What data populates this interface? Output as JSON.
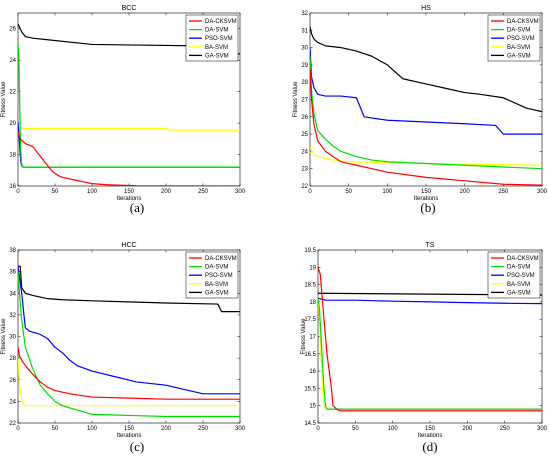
{
  "colors": {
    "DA-CKSVM": "#ff0000",
    "DA-SVM": "#00dd00",
    "PSO-SVM": "#0000ff",
    "BA-SVM": "#ffff00",
    "GA-SVM": "#000000"
  },
  "chart_data": [
    {
      "type": "line",
      "caption": "(a)",
      "title": "BCC",
      "xlabel": "Iterations",
      "ylabel": "Fitness Value",
      "xlim": [
        0,
        300
      ],
      "ylim": [
        16,
        27
      ],
      "xticks": [
        0,
        50,
        100,
        150,
        200,
        250,
        300
      ],
      "yticks": [
        16,
        18,
        20,
        22,
        24,
        26
      ],
      "legend": "top-right",
      "series": [
        {
          "name": "DA-CKSVM",
          "x": [
            0,
            1,
            3,
            5,
            10,
            20,
            25,
            30,
            35,
            40,
            45,
            50,
            55,
            60,
            70,
            80,
            90,
            100,
            120,
            160,
            300
          ],
          "y": [
            19.5,
            19.3,
            19.0,
            18.9,
            18.7,
            18.5,
            18.2,
            17.9,
            17.6,
            17.3,
            17.0,
            16.8,
            16.65,
            16.55,
            16.45,
            16.35,
            16.25,
            16.15,
            16.08,
            16.02,
            16.0
          ]
        },
        {
          "name": "DA-SVM",
          "x": [
            0,
            1,
            2,
            3,
            4,
            5,
            6,
            8,
            10,
            300
          ],
          "y": [
            25.0,
            24.5,
            22.0,
            19.5,
            18.0,
            17.4,
            17.25,
            17.2,
            17.2,
            17.2
          ]
        },
        {
          "name": "PSO-SVM",
          "x": [
            0,
            1,
            2,
            3,
            4,
            5,
            6,
            8,
            10,
            300
          ],
          "y": [
            20.0,
            19.5,
            18.8,
            18.0,
            17.5,
            17.3,
            17.22,
            17.2,
            17.2,
            17.2
          ]
        },
        {
          "name": "BA-SVM",
          "x": [
            0,
            5,
            10,
            200,
            210,
            300
          ],
          "y": [
            19.7,
            19.7,
            19.65,
            19.65,
            19.55,
            19.55
          ]
        },
        {
          "name": "GA-SVM",
          "x": [
            0,
            2,
            5,
            10,
            20,
            40,
            100,
            260,
            265,
            300
          ],
          "y": [
            26.3,
            26.1,
            25.8,
            25.5,
            25.4,
            25.3,
            25.0,
            24.9,
            24.4,
            24.4
          ]
        }
      ]
    },
    {
      "type": "line",
      "caption": "(b)",
      "title": "HS",
      "xlabel": "Iterations",
      "ylabel": "Fitness Value",
      "xlim": [
        0,
        300
      ],
      "ylim": [
        22,
        32
      ],
      "xticks": [
        0,
        50,
        100,
        150,
        200,
        250,
        300
      ],
      "yticks": [
        22,
        23,
        24,
        25,
        26,
        27,
        28,
        29,
        30,
        31,
        32
      ],
      "legend": "top-right",
      "series": [
        {
          "name": "DA-CKSVM",
          "x": [
            0,
            2,
            5,
            10,
            20,
            30,
            40,
            60,
            80,
            100,
            150,
            200,
            250,
            300
          ],
          "y": [
            28.8,
            27.0,
            25.6,
            24.6,
            24.0,
            23.7,
            23.4,
            23.2,
            23.0,
            22.8,
            22.5,
            22.3,
            22.1,
            22.05
          ]
        },
        {
          "name": "DA-SVM",
          "x": [
            0,
            2,
            5,
            10,
            20,
            30,
            40,
            60,
            80,
            100,
            150,
            200,
            250,
            300
          ],
          "y": [
            29.5,
            27.5,
            26.2,
            25.2,
            24.7,
            24.3,
            24.0,
            23.7,
            23.5,
            23.4,
            23.3,
            23.2,
            23.1,
            23.0
          ]
        },
        {
          "name": "PSO-SVM",
          "x": [
            0,
            2,
            5,
            10,
            20,
            40,
            60,
            70,
            100,
            150,
            200,
            240,
            250,
            300
          ],
          "y": [
            30.0,
            28.3,
            27.7,
            27.3,
            27.2,
            27.2,
            27.1,
            26.0,
            25.8,
            25.7,
            25.6,
            25.5,
            25.0,
            25.0
          ]
        },
        {
          "name": "BA-SVM",
          "x": [
            0,
            2,
            5,
            10,
            20,
            30,
            50,
            100,
            150,
            200,
            300
          ],
          "y": [
            24.3,
            24.0,
            23.8,
            23.7,
            23.6,
            23.5,
            23.4,
            23.35,
            23.3,
            23.25,
            23.2
          ]
        },
        {
          "name": "GA-SVM",
          "x": [
            0,
            2,
            5,
            10,
            20,
            40,
            60,
            80,
            100,
            120,
            150,
            180,
            200,
            220,
            250,
            280,
            300
          ],
          "y": [
            31.2,
            30.8,
            30.5,
            30.3,
            30.1,
            30.0,
            29.8,
            29.5,
            29.0,
            28.2,
            27.9,
            27.6,
            27.4,
            27.3,
            27.1,
            26.5,
            26.3
          ]
        }
      ]
    },
    {
      "type": "line",
      "caption": "(c)",
      "title": "HCC",
      "xlabel": "Iterations",
      "ylabel": "Fitness Value",
      "xlim": [
        0,
        300
      ],
      "ylim": [
        22,
        38
      ],
      "xticks": [
        0,
        50,
        100,
        150,
        200,
        250,
        300
      ],
      "yticks": [
        22,
        24,
        26,
        28,
        30,
        32,
        34,
        36,
        38
      ],
      "legend": "top-right",
      "series": [
        {
          "name": "DA-CKSVM",
          "x": [
            0,
            2,
            5,
            10,
            20,
            30,
            40,
            50,
            70,
            100,
            150,
            200,
            300
          ],
          "y": [
            29.0,
            28.2,
            27.8,
            27.3,
            26.5,
            25.8,
            25.3,
            25.0,
            24.7,
            24.4,
            24.3,
            24.2,
            24.2
          ]
        },
        {
          "name": "DA-SVM",
          "x": [
            0,
            2,
            5,
            8,
            10,
            15,
            20,
            30,
            40,
            50,
            60,
            80,
            100,
            150,
            200,
            300
          ],
          "y": [
            36.0,
            34.0,
            31.5,
            30.0,
            29.0,
            28.0,
            27.0,
            25.5,
            24.7,
            24.0,
            23.6,
            23.2,
            22.8,
            22.7,
            22.6,
            22.6
          ]
        },
        {
          "name": "PSO-SVM",
          "x": [
            0,
            2,
            5,
            8,
            10,
            15,
            20,
            30,
            40,
            50,
            60,
            70,
            80,
            100,
            130,
            160,
            200,
            250,
            300
          ],
          "y": [
            36.5,
            35.5,
            34.0,
            32.0,
            30.8,
            30.5,
            30.4,
            30.2,
            29.8,
            29.0,
            28.5,
            27.8,
            27.3,
            26.8,
            26.3,
            25.8,
            25.5,
            24.7,
            24.7
          ]
        },
        {
          "name": "BA-SVM",
          "x": [
            0,
            2,
            5,
            8,
            10,
            300
          ],
          "y": [
            28.0,
            25.5,
            24.2,
            23.7,
            23.6,
            23.6
          ]
        },
        {
          "name": "GA-SVM",
          "x": [
            0,
            3,
            5,
            8,
            10,
            20,
            40,
            60,
            100,
            150,
            200,
            270,
            275,
            300
          ],
          "y": [
            36.5,
            36.5,
            34.5,
            34.2,
            34.0,
            33.8,
            33.5,
            33.4,
            33.3,
            33.2,
            33.1,
            33.0,
            32.3,
            32.3
          ]
        }
      ]
    },
    {
      "type": "line",
      "caption": "(d)",
      "title": "TS",
      "xlabel": "Iterations",
      "ylabel": "Fitness Value",
      "xlim": [
        0,
        300
      ],
      "ylim": [
        14.5,
        19.5
      ],
      "xticks": [
        0,
        50,
        100,
        150,
        200,
        250,
        300
      ],
      "yticks": [
        14.5,
        15,
        15.5,
        16,
        16.5,
        17,
        17.5,
        18,
        18.5,
        19,
        19.5
      ],
      "legend": "top-right",
      "series": [
        {
          "name": "DA-CKSVM",
          "x": [
            0,
            3,
            5,
            8,
            10,
            12,
            15,
            18,
            20,
            25,
            30,
            300
          ],
          "y": [
            19.0,
            18.8,
            18.3,
            17.5,
            17.0,
            16.5,
            16.0,
            15.5,
            15.0,
            14.9,
            14.85,
            14.85
          ]
        },
        {
          "name": "DA-SVM",
          "x": [
            0,
            2,
            4,
            6,
            8,
            10,
            12,
            300
          ],
          "y": [
            18.1,
            17.8,
            17.0,
            16.2,
            15.5,
            15.0,
            14.9,
            14.9
          ]
        },
        {
          "name": "PSO-SVM",
          "x": [
            0,
            5,
            10,
            50,
            100,
            150,
            200,
            250,
            300
          ],
          "y": [
            18.1,
            18.08,
            18.05,
            18.05,
            18.02,
            18.0,
            17.98,
            17.96,
            17.95
          ]
        },
        {
          "name": "BA-SVM",
          "x": [
            0,
            2,
            4,
            6,
            8,
            10,
            300
          ],
          "y": [
            18.1,
            17.5,
            16.5,
            15.5,
            15.0,
            14.9,
            14.9
          ]
        },
        {
          "name": "GA-SVM",
          "x": [
            0,
            300
          ],
          "y": [
            18.25,
            18.2
          ]
        }
      ]
    }
  ]
}
